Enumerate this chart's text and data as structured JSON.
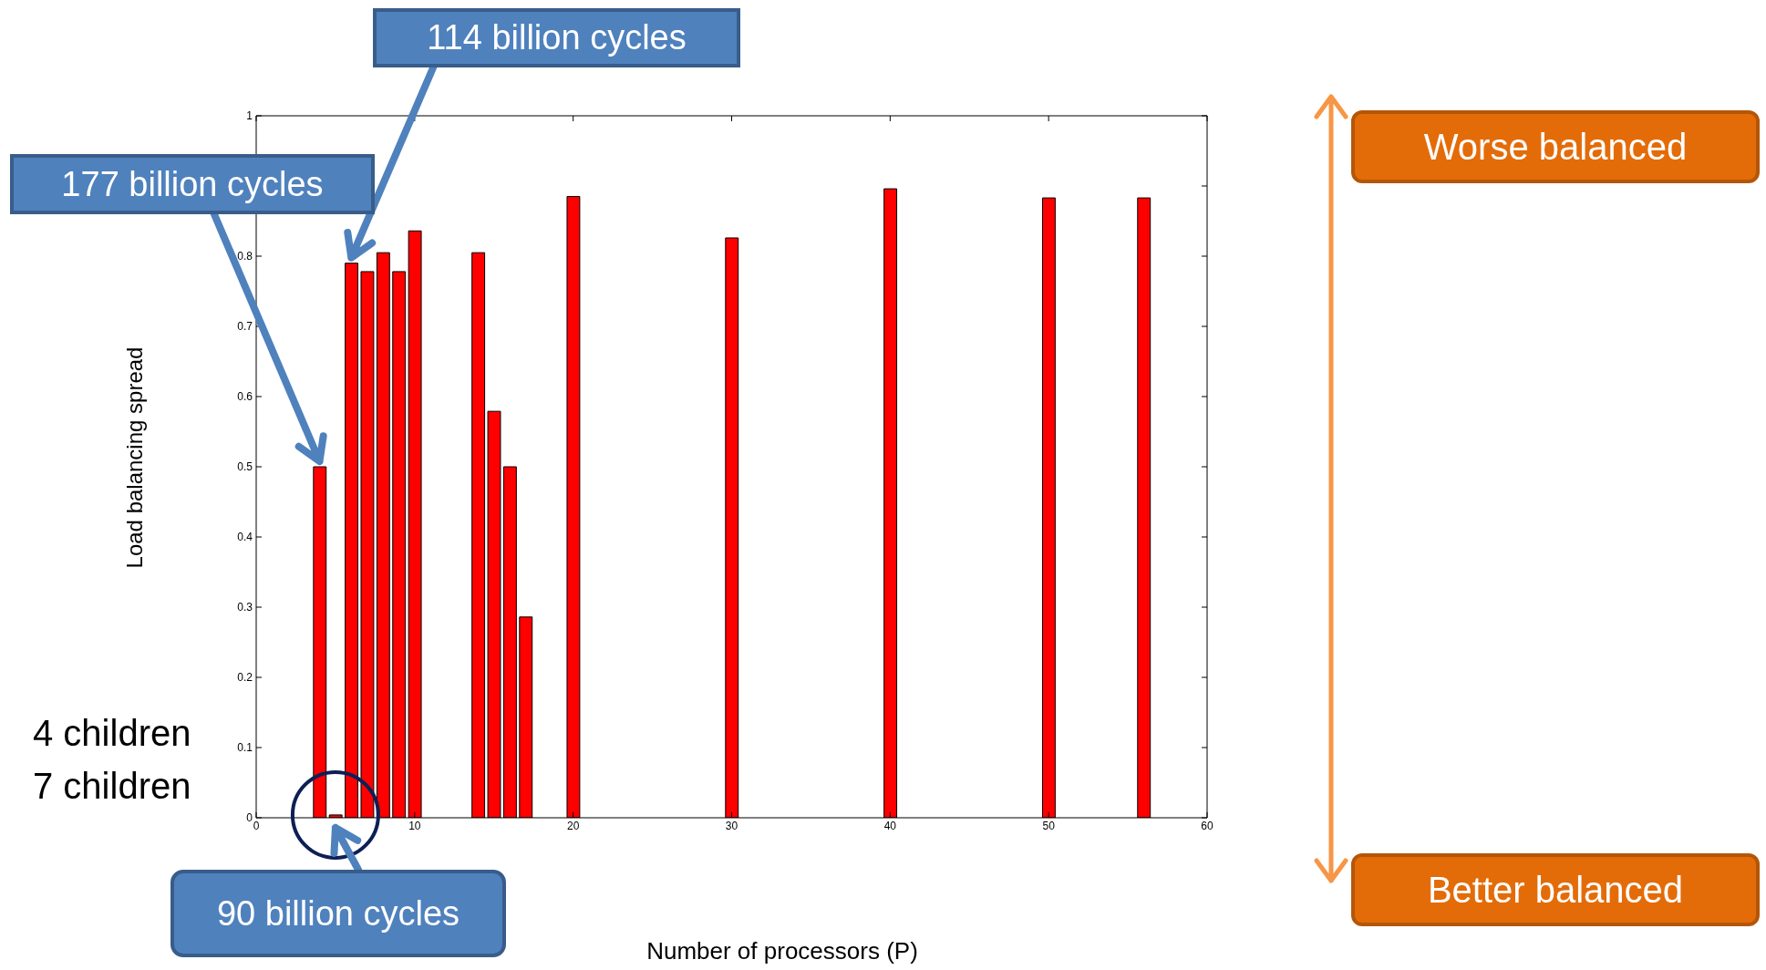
{
  "chart_data": {
    "type": "bar",
    "xlabel": "Number of processors (P)",
    "ylabel": "Load balancing spread",
    "x": [
      3,
      4,
      5,
      6,
      7,
      8,
      9,
      10,
      14,
      15,
      16,
      17,
      20,
      30,
      40,
      50,
      56
    ],
    "values": [
      0,
      0.5,
      0.004,
      0.79,
      0.778,
      0.805,
      0.778,
      0.836,
      0.805,
      0.579,
      0.5,
      0.286,
      0.885,
      0.826,
      0.896,
      0.883,
      0.883
    ],
    "color": "#ff0000",
    "xlim": [
      0,
      60
    ],
    "xticks": [
      0,
      10,
      20,
      30,
      40,
      50,
      60
    ],
    "ylim": [
      0,
      1
    ],
    "yticks": [
      0,
      0.1,
      0.2,
      0.3,
      0.4,
      0.5,
      0.6,
      0.7,
      0.8,
      {
        "value": 0.9,
        "label": null
      },
      1
    ],
    "grid": false,
    "annotations": [
      {
        "text": "114 billion cycles",
        "x": 6,
        "y": 0.79
      },
      {
        "text": "177 billion cycles",
        "x": 4,
        "y": 0.5
      },
      {
        "text": "90 billion cycles",
        "x": 5,
        "y": 0.004
      },
      "4 children",
      "7 children",
      "Worse balanced",
      "Better balanced"
    ]
  }
}
